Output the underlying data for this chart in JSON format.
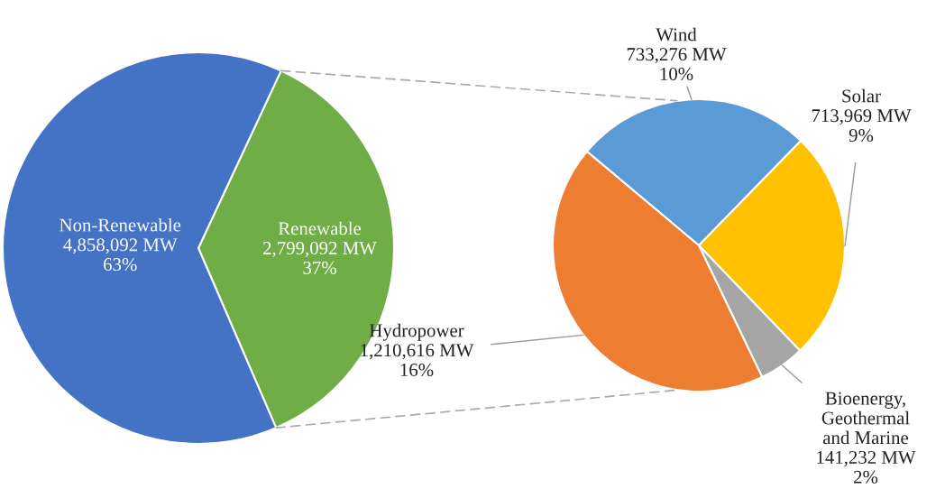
{
  "chart_data": [
    {
      "type": "pie",
      "categories": [
        "Renewable",
        "Non-Renewable"
      ],
      "values": [
        2799092,
        4858092
      ],
      "colors": [
        "#70ad47",
        "#4472c4"
      ],
      "value_labels": [
        "2,799,092 MW\n37%",
        "4,858,092 MW\n63%"
      ]
    },
    {
      "type": "pie",
      "categories": [
        "Wind",
        "Solar",
        "Bioenergy,\nGeothermal\nand Marine",
        "Hydropower"
      ],
      "values": [
        733276,
        713969,
        141232,
        1210616
      ],
      "colors": [
        "#5b9bd5",
        "#ffc000",
        "#a5a5a5",
        "#ed7d31"
      ],
      "value_labels": [
        "733,276 MW\n10%",
        "713,969 MW\n9%",
        "141,232 MW\n2%",
        "1,210,616 MW\n16%"
      ]
    }
  ]
}
